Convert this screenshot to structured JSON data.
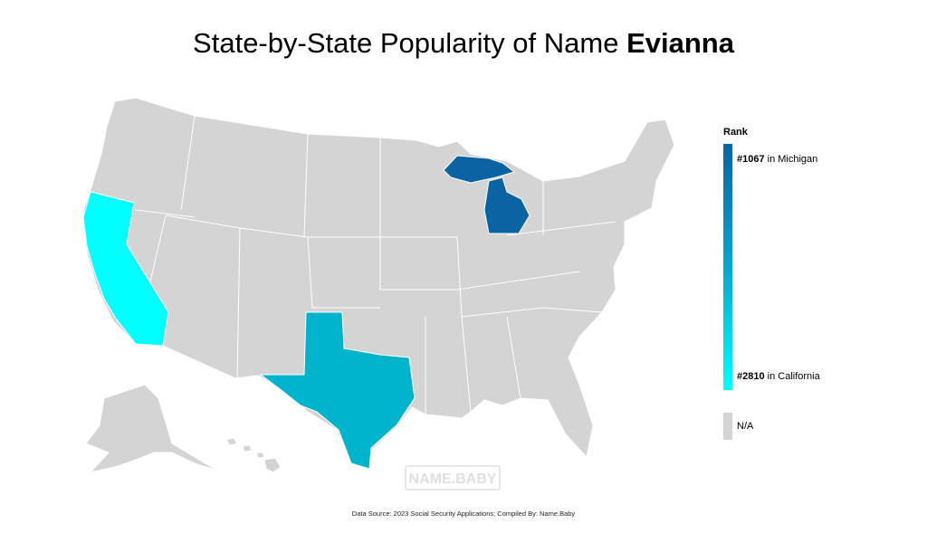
{
  "title": {
    "prefix": "State-by-State Popularity of Name ",
    "name": "Evianna"
  },
  "legend": {
    "heading": "Rank",
    "top": {
      "rank": "#1067",
      "suffix": " in Michigan"
    },
    "bottom": {
      "rank": "#2810",
      "suffix": " in California"
    },
    "na": "N/A",
    "color_high": "#0a64a4",
    "color_low": "#00ffff",
    "color_na": "#d4d4d4"
  },
  "highlighted_states": [
    {
      "state": "Michigan",
      "rank": 1067,
      "color": "#0a64a4"
    },
    {
      "state": "Texas",
      "rank": 2000,
      "color": "#00b4cc"
    },
    {
      "state": "California",
      "rank": 2810,
      "color": "#00ffff"
    }
  ],
  "watermark": "NAME.BABY",
  "source": "Data Source: 2023 Social Security Applications; Compiled By: Name.Baby"
}
